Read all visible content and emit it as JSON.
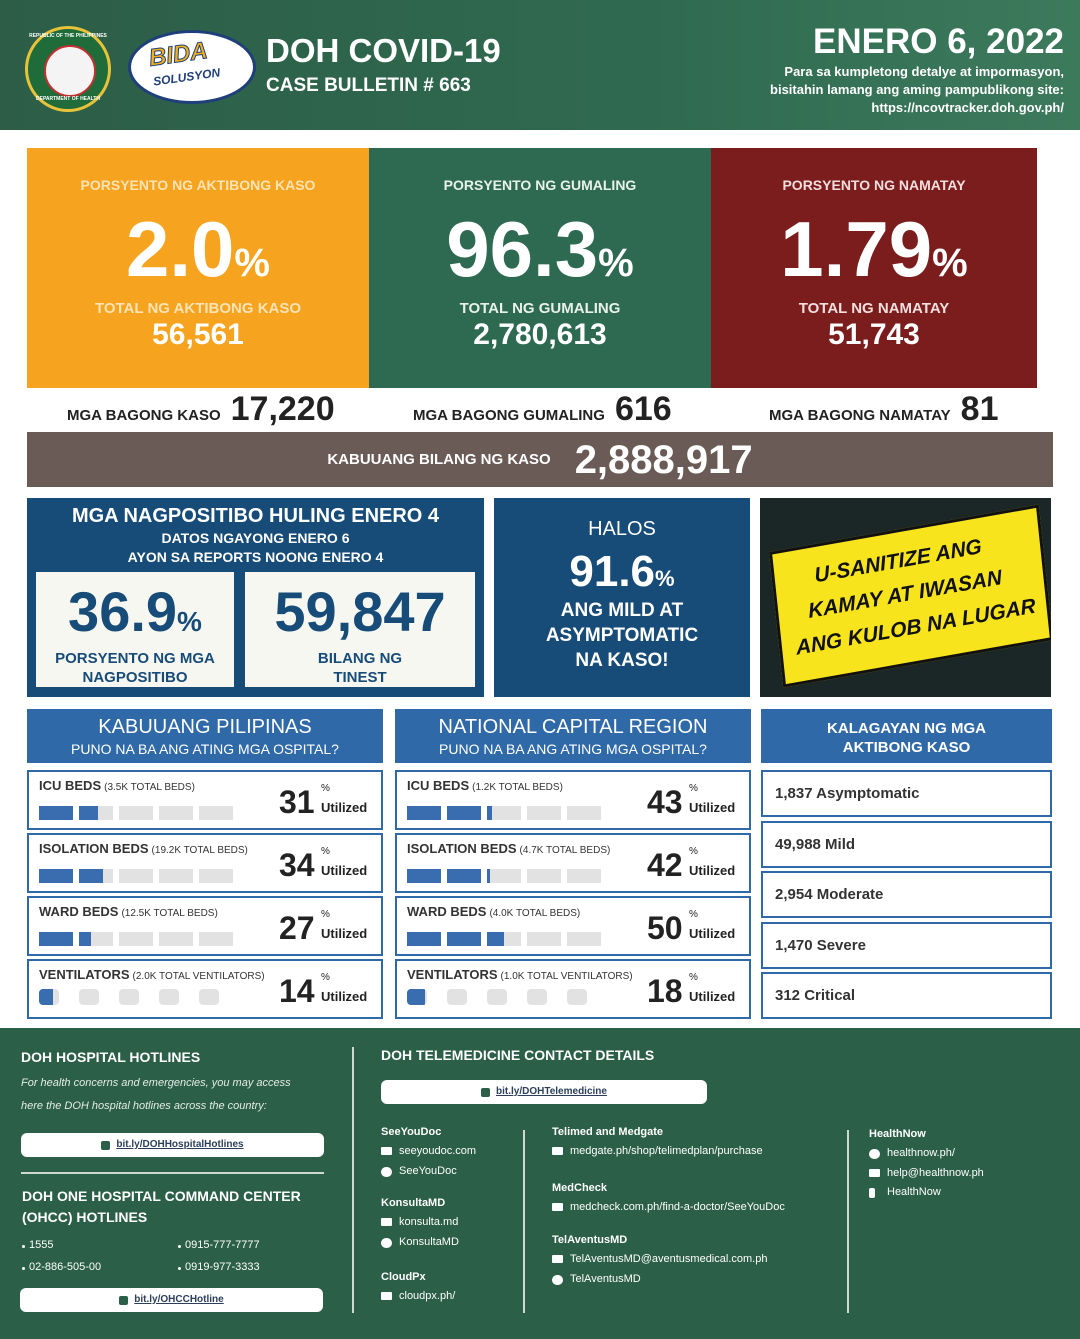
{
  "header": {
    "seal_top": "REPUBLIC OF THE PHILIPPINES",
    "seal_bottom": "DEPARTMENT OF HEALTH",
    "logo_top": "BIDA",
    "logo_bottom": "SOLUSYON",
    "title": "DOH COVID-19",
    "bulletin": "CASE BULLETIN # 663",
    "date": "ENERO 6, 2022",
    "note_lines": [
      "Para sa kumpletong detalye at impormasyon,",
      "bisitahin lamang ang aming pampublikong site:",
      "https://ncovtracker.doh.gov.ph/"
    ]
  },
  "cards": [
    {
      "label": "PORSYENTO NG AKTIBONG KASO",
      "value": "2.0",
      "unit": "%",
      "total_label": "TOTAL NG AKTIBONG KASO",
      "total": "56,561"
    },
    {
      "label": "PORSYENTO NG GUMALING",
      "value": "96.3",
      "unit": "%",
      "total_label": "TOTAL NG GUMALING",
      "total": "2,780,613"
    },
    {
      "label": "PORSYENTO NG NAMATAY",
      "value": "1.79",
      "unit": "%",
      "total_label": "TOTAL NG NAMATAY",
      "total": "51,743"
    }
  ],
  "new_cases": [
    {
      "label": "MGA BAGONG KASO",
      "value": "17,220"
    },
    {
      "label": "MGA BAGONG GUMALING",
      "value": "616"
    },
    {
      "label": "MGA BAGONG NAMATAY",
      "value": "81"
    }
  ],
  "total_cases": {
    "label": "KABUUANG BILANG NG KASO",
    "value": "2,888,917"
  },
  "positivity": {
    "title": "MGA NAGPOSITIBO HULING ENERO 4",
    "subtitle_lines": [
      "DATOS NGAYONG ENERO 6",
      "AYON SA REPORTS NOONG ENERO 4"
    ],
    "boxes": [
      {
        "value": "36.9",
        "unit": "%",
        "label_lines": [
          "PORSYENTO NG MGA",
          "NAGPOSITIBO"
        ]
      },
      {
        "value": "59,847",
        "label_lines": [
          "BILANG NG",
          "TINEST"
        ]
      }
    ]
  },
  "mild": {
    "lead": "HALOS",
    "value": "91.6",
    "unit": "%",
    "lines": [
      "ANG MILD AT",
      "ASYMPTOMATIC",
      "NA KASO!"
    ]
  },
  "banner": {
    "lines": [
      "U-SANITIZE ANG",
      "KAMAY AT IWASAN",
      "ANG KULOB NA LUGAR"
    ]
  },
  "hospital": [
    {
      "title": "KABUUANG PILIPINAS",
      "subtitle": "PUNO NA BA ANG ATING MGA OSPITAL?",
      "unit": "%",
      "utilized_label": "Utilized",
      "rows": [
        {
          "name": "ICU BEDS",
          "detail": "(3.5K TOTAL BEDS)",
          "value": 31
        },
        {
          "name": "ISOLATION BEDS",
          "detail": "(19.2K TOTAL BEDS)",
          "value": 34
        },
        {
          "name": "WARD BEDS",
          "detail": "(12.5K TOTAL BEDS)",
          "value": 27
        },
        {
          "name": "VENTILATORS",
          "detail": "(2.0K TOTAL VENTILATORS)",
          "value": 14
        }
      ]
    },
    {
      "title": "NATIONAL CAPITAL REGION",
      "subtitle": "PUNO NA BA ANG ATING MGA OSPITAL?",
      "unit": "%",
      "utilized_label": "Utilized",
      "rows": [
        {
          "name": "ICU BEDS",
          "detail": "(1.2K TOTAL BEDS)",
          "value": 43
        },
        {
          "name": "ISOLATION BEDS",
          "detail": "(4.7K TOTAL BEDS)",
          "value": 42
        },
        {
          "name": "WARD BEDS",
          "detail": "(4.0K TOTAL BEDS)",
          "value": 50
        },
        {
          "name": "VENTILATORS",
          "detail": "(1.0K TOTAL VENTILATORS)",
          "value": 18
        }
      ]
    }
  ],
  "active_cases": {
    "title_lines": [
      "KALAGAYAN NG MGA",
      "AKTIBONG KASO"
    ],
    "items": [
      "1,837 Asymptomatic",
      "49,988 Mild",
      "2,954 Moderate",
      "1,470 Severe",
      "312 Critical"
    ]
  },
  "footer": {
    "hotlines": {
      "title": "DOH HOSPITAL HOTLINES",
      "text_lines": [
        "For health concerns and emergencies, you may access",
        "here the DOH hospital hotlines across the country:"
      ],
      "link": "bit.ly/DOHHospitalHotlines"
    },
    "ohcc": {
      "title_lines": [
        "DOH ONE HOSPITAL COMMAND CENTER",
        "(OHCC) HOTLINES"
      ],
      "numbers": [
        "1555",
        "0915-777-7777",
        "02-886-505-00",
        "0919-977-3333"
      ],
      "link": "bit.ly/OHCCHotline"
    },
    "telemedicine": {
      "title": "DOH TELEMEDICINE CONTACT DETAILS",
      "link": "bit.ly/DOHTelemedicine",
      "providers": [
        {
          "name": "SeeYouDoc",
          "items": [
            "seeyoudoc.com",
            "SeeYouDoc"
          ]
        },
        {
          "name": "KonsultaMD",
          "items": [
            "konsulta.md",
            "KonsultaMD"
          ]
        },
        {
          "name": "CloudPx",
          "items": [
            "cloudpx.ph/"
          ]
        },
        {
          "name": "Telimed and Medgate",
          "items": [
            "medgate.ph/shop/telimedplan/purchase"
          ]
        },
        {
          "name": "MedCheck",
          "items": [
            "medcheck.com.ph/find-a-doctor/SeeYouDoc"
          ]
        },
        {
          "name": "TelAventusMD",
          "items": [
            "TelAventusMD@aventusmedical.com.ph",
            "TelAventusMD"
          ]
        },
        {
          "name": "HealthNow",
          "items": [
            "healthnow.ph/",
            "help@healthnow.ph",
            "HealthNow"
          ]
        }
      ]
    }
  }
}
